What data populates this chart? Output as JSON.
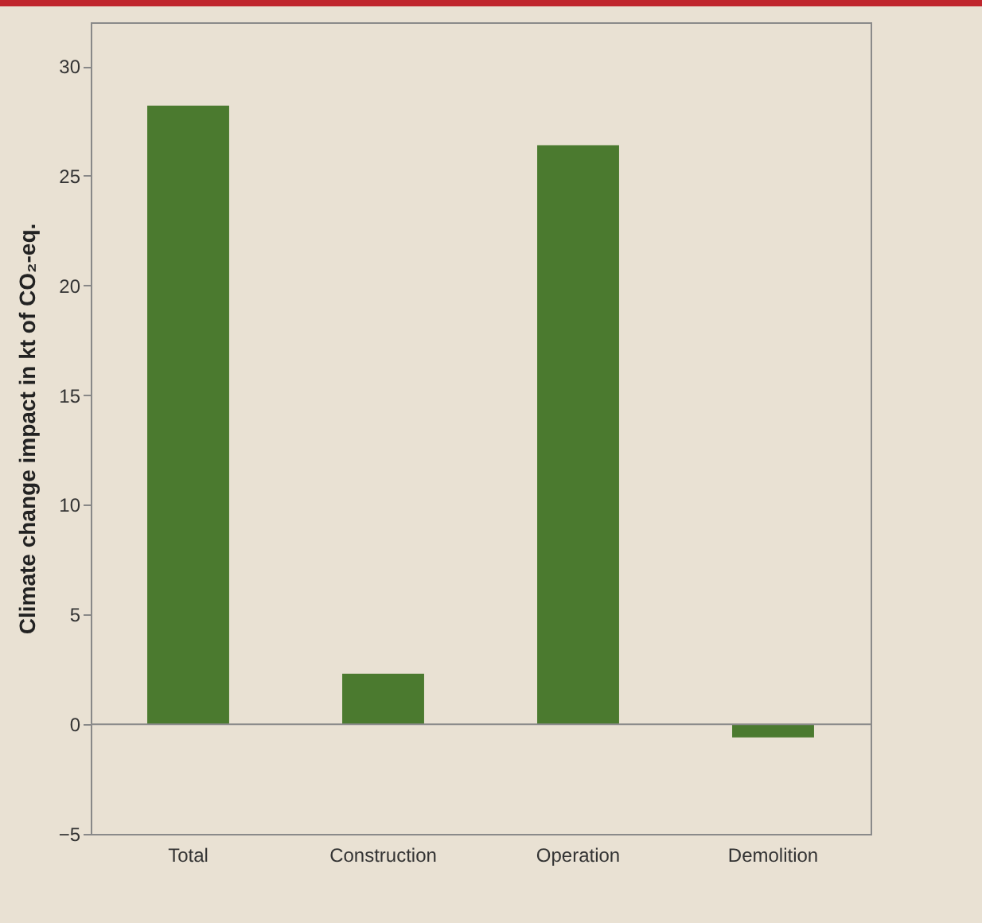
{
  "chart_data": {
    "type": "bar",
    "ylabel": "Climate change impact in kt of CO₂-eq.",
    "categories": [
      "Total",
      "Construction",
      "Operation",
      "Demolition"
    ],
    "values": [
      28.2,
      2.3,
      26.4,
      -0.6
    ],
    "color": "#4b7a2f",
    "ylim": [
      -5,
      32
    ],
    "yticks": [
      -5,
      0,
      5,
      10,
      15,
      20,
      25,
      30
    ],
    "ref_lines": [
      {
        "axis": "y",
        "value": 0,
        "color": "#8a8a8a"
      }
    ],
    "grid": false
  }
}
